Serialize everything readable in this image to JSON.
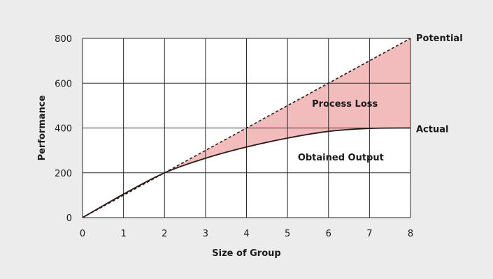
{
  "colors": {
    "background": "#ececec",
    "plot_background": "#ffffff",
    "grid": "#2a2a2a",
    "fill": "#f2bcbc",
    "line": "#2a1a1a"
  },
  "chart_data": {
    "type": "line",
    "xlabel": "Size of Group",
    "ylabel": "Performance",
    "xlim": [
      0,
      8
    ],
    "ylim": [
      0,
      800
    ],
    "xticks": [
      0,
      1,
      2,
      3,
      4,
      5,
      6,
      7,
      8
    ],
    "yticks": [
      0,
      200,
      400,
      600,
      800
    ],
    "grid": true,
    "series": [
      {
        "name": "Potential",
        "style": "dashed",
        "x": [
          0,
          8
        ],
        "y": [
          0,
          800
        ]
      },
      {
        "name": "Actual",
        "style": "solid",
        "x": [
          0,
          1,
          2,
          3,
          4,
          5,
          6,
          7,
          8
        ],
        "y": [
          0,
          105,
          200,
          265,
          315,
          355,
          385,
          398,
          400
        ]
      }
    ],
    "annotations": [
      {
        "text": "Process Loss",
        "x": 6.4,
        "y": 495
      },
      {
        "text": "Obtained Output",
        "x": 6.3,
        "y": 255
      }
    ]
  }
}
